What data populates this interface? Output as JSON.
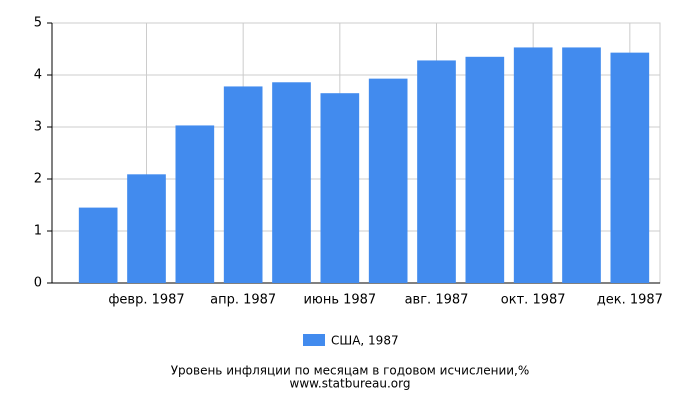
{
  "chart_data": {
    "type": "bar",
    "title": "Уровень инфляции по месяцам в годовом исчислении,%",
    "subtitle": "www.statbureau.org",
    "categories": [
      null,
      "февр. 1987",
      null,
      "апр. 1987",
      null,
      "июнь 1987",
      null,
      "авг. 1987",
      null,
      "окт. 1987",
      null,
      "дек. 1987"
    ],
    "series": [
      {
        "name": "США, 1987",
        "color": "#428bee",
        "values": [
          1.45,
          2.09,
          3.03,
          3.78,
          3.86,
          3.65,
          3.93,
          4.28,
          4.35,
          4.53,
          4.53,
          4.43
        ]
      }
    ],
    "ylim": [
      0,
      5
    ],
    "yticks": [
      0,
      1,
      2,
      3,
      4,
      5
    ],
    "grid": true
  }
}
